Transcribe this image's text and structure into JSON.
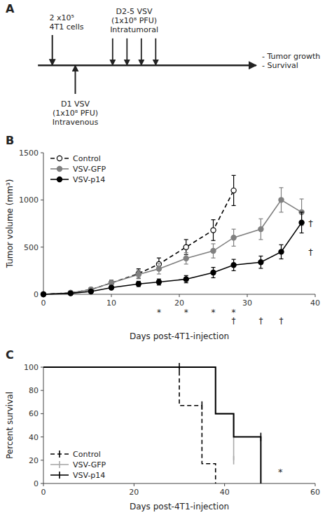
{
  "chart_data": [
    {
      "type": "diagram",
      "title": "A",
      "annotations": [
        {
          "text": "2 x10⁵\n4T1 cells"
        },
        {
          "text": "D2-5 VSV\n(1x10⁸ PFU)\nIntratumoral"
        },
        {
          "text": "D1 VSV\n(1x10⁸ PFU)\nIntravenous"
        },
        {
          "text": "- Tumor growth\n- Survival"
        }
      ]
    },
    {
      "type": "line",
      "title": "B",
      "xlabel": "Days post-4T1-injection",
      "ylabel": "Tumor volume (mm³)",
      "xlim": [
        0,
        40
      ],
      "ylim": [
        0,
        1500
      ],
      "xticks": [
        0,
        10,
        20,
        30,
        40
      ],
      "yticks": [
        0,
        500,
        1000,
        1500
      ],
      "legend": "upper left",
      "series": [
        {
          "name": "Control",
          "color": "#000000",
          "line_style": "dashed",
          "marker": "circle-open",
          "x": [
            0,
            4,
            7,
            10,
            14,
            17,
            21,
            25,
            28
          ],
          "values": [
            0,
            15,
            50,
            120,
            220,
            320,
            500,
            680,
            1100
          ],
          "errors": [
            0,
            8,
            15,
            30,
            50,
            65,
            80,
            110,
            160
          ]
        },
        {
          "name": "VSV-GFP",
          "color": "#808080",
          "line_style": "solid",
          "marker": "circle",
          "x": [
            0,
            4,
            7,
            10,
            14,
            17,
            21,
            25,
            28,
            32,
            35,
            38
          ],
          "values": [
            0,
            15,
            50,
            120,
            210,
            270,
            380,
            460,
            600,
            690,
            1000,
            870
          ],
          "errors": [
            0,
            8,
            15,
            30,
            45,
            55,
            60,
            75,
            90,
            110,
            130,
            140
          ]
        },
        {
          "name": "VSV-p14",
          "color": "#000000",
          "line_style": "solid",
          "marker": "circle",
          "x": [
            0,
            4,
            7,
            10,
            14,
            17,
            21,
            25,
            28,
            32,
            35,
            38
          ],
          "values": [
            0,
            10,
            30,
            70,
            110,
            130,
            160,
            230,
            310,
            340,
            450,
            760
          ],
          "errors": [
            0,
            5,
            10,
            18,
            28,
            32,
            38,
            55,
            60,
            65,
            75,
            110
          ]
        }
      ],
      "annotations": [
        {
          "text": "*",
          "x": [
            17,
            21,
            25,
            28
          ]
        },
        {
          "text": "†",
          "x": [
            28,
            32,
            35
          ]
        },
        {
          "text": "†",
          "x": 38.8,
          "y": 760
        },
        {
          "text": "†",
          "x": 38.8,
          "y": 450
        }
      ]
    },
    {
      "type": "line",
      "title": "C",
      "xlabel": "Days post-4T1-injection",
      "ylabel": "Percent survival",
      "xlim": [
        0,
        60
      ],
      "ylim": [
        0,
        100
      ],
      "xticks": [
        0,
        20,
        40,
        60
      ],
      "yticks": [
        0,
        20,
        40,
        60,
        80,
        100
      ],
      "legend": "lower left",
      "series": [
        {
          "name": "Control",
          "color": "#000000",
          "line_style": "dashed",
          "marker": "tick",
          "x": [
            0,
            30,
            30,
            35,
            35,
            38,
            38
          ],
          "values": [
            100,
            100,
            67,
            67,
            17,
            17,
            0
          ],
          "censored_x": [
            30,
            35
          ],
          "censored_y": [
            100,
            67
          ]
        },
        {
          "name": "VSV-GFP",
          "color": "#aaaaaa",
          "line_style": "solid",
          "marker": "tick",
          "x": [
            0,
            38,
            38,
            42,
            42
          ],
          "values": [
            100,
            100,
            60,
            60,
            20
          ],
          "censored_x": [
            42
          ],
          "censored_y": [
            20
          ]
        },
        {
          "name": "VSV-p14",
          "color": "#000000",
          "line_style": "solid",
          "marker": "tick",
          "x": [
            0,
            38,
            38,
            42,
            42,
            48,
            48
          ],
          "values": [
            100,
            100,
            60,
            60,
            40,
            40,
            0
          ],
          "censored_x": [
            48
          ],
          "censored_y": [
            40
          ]
        }
      ],
      "annotations": [
        {
          "text": "*",
          "x": 52,
          "y": 10
        }
      ]
    }
  ]
}
